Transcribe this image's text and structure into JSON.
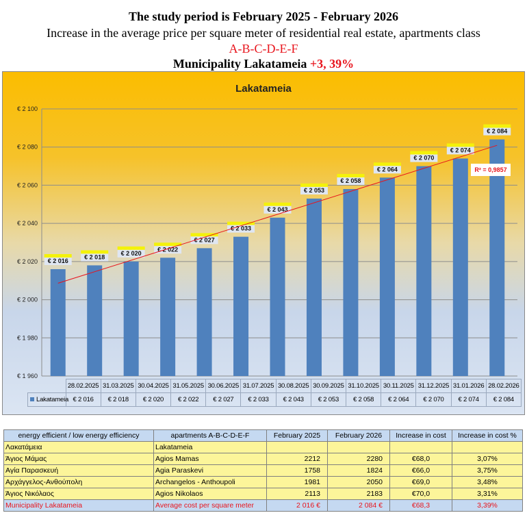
{
  "header": {
    "line1": "The study period is February 2025 - February 2026",
    "line2": "Increase in the average price per square meter of residential real estate, apartments class",
    "line3": "A-B-C-D-E-F",
    "line4": "Municipality Lakatameia",
    "line4_change": "+3, 39%"
  },
  "chart_data": {
    "type": "bar",
    "title": "Lakatameia",
    "categories": [
      "28.02.2025",
      "31.03.2025",
      "30.04.2025",
      "31.05.2025",
      "30.06.2025",
      "31.07.2025",
      "30.08.2025",
      "30.09.2025",
      "31.10.2025",
      "30.11.2025",
      "31.12.2025",
      "31.01.2026",
      "28.02.2026"
    ],
    "series": [
      {
        "name": "Lakatameia",
        "values": [
          2016,
          2018,
          2020,
          2022,
          2027,
          2033,
          2043,
          2053,
          2058,
          2064,
          2070,
          2074,
          2084
        ],
        "color": "#4f81bd"
      }
    ],
    "value_labels": [
      "€ 2 016",
      "€ 2 018",
      "€ 2 020",
      "€ 2 022",
      "€ 2 027",
      "€ 2 033",
      "€ 2 043",
      "€ 2 053",
      "€ 2 058",
      "€ 2 064",
      "€ 2 070",
      "€ 2 074",
      "€ 2 084"
    ],
    "ylim": [
      1960,
      2100
    ],
    "yticks": [
      "€ 1 960",
      "€ 1 980",
      "€ 2 000",
      "€ 2 020",
      "€ 2 040",
      "€ 2 060",
      "€ 2 080",
      "€ 2 100"
    ],
    "trendline": {
      "type": "linear",
      "color": "#e8141c",
      "label": "R² = 0,9857"
    },
    "grid": true,
    "legend": "data-table"
  },
  "table": {
    "headers": [
      "energy efficient / low energy efficiency",
      "apartments A-B-C-D-E-F",
      "February 2025",
      "February 2026",
      "Increase in cost",
      "Increase in cost  %"
    ],
    "rows": [
      [
        "Λακατάμεια",
        "Lakatameia",
        "",
        "",
        "",
        ""
      ],
      [
        "Άγιος Μάμας",
        "Agios Mamas",
        "2212",
        "2280",
        "€68,0",
        "3,07%"
      ],
      [
        "Αγία Παρασκευή",
        "Agia Paraskevi",
        "1758",
        "1824",
        "€66,0",
        "3,75%"
      ],
      [
        "Αρχάγγελος-Ανθούπολη",
        "Archangelos - Anthoupoli",
        "1981",
        "2050",
        "€69,0",
        "3,48%"
      ],
      [
        "Άγιος Νικόλαος",
        "Agios Nikolaos",
        "2113",
        "2183",
        "€70,0",
        "3,31%"
      ]
    ],
    "footer": [
      "Municipality  Lakatameia",
      "Average cost per square meter",
      "2 016 €",
      "2 084 €",
      "€68,3",
      "3,39%"
    ]
  }
}
